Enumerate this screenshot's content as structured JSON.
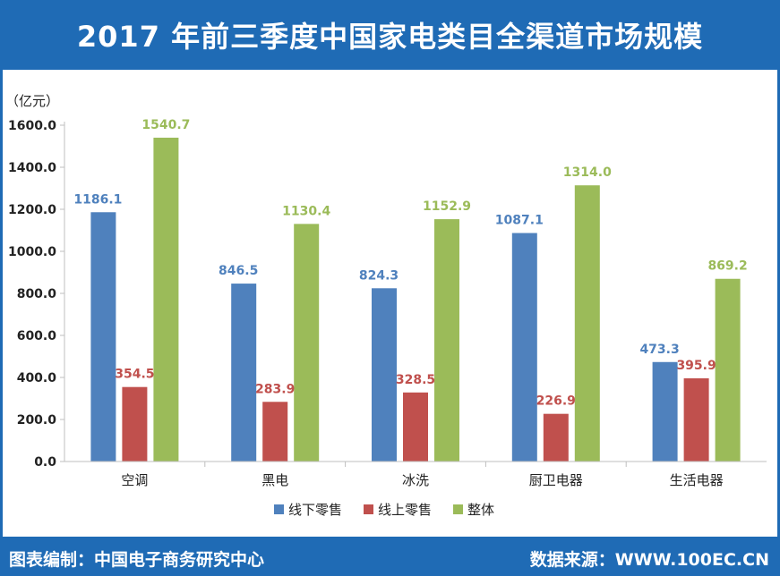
{
  "header": {
    "title": "2017 年前三季度中国家电类目全渠道市场规模"
  },
  "footer": {
    "source_left": "图表编制：中国电子商务研究中心",
    "source_right": "数据来源：WWW.100EC.CN"
  },
  "chart_data": {
    "type": "bar",
    "title": "2017 年前三季度中国家电类目全渠道市场规模",
    "ylabel": "（亿元）",
    "xlabel": "",
    "ylim": [
      0,
      1600
    ],
    "yticks": [
      "0.0",
      "200.0",
      "400.0",
      "600.0",
      "800.0",
      "1000.0",
      "1200.0",
      "1400.0",
      "1600.0"
    ],
    "categories": [
      "空调",
      "黑电",
      "冰洗",
      "厨卫电器",
      "生活电器"
    ],
    "series": [
      {
        "name": "线下零售",
        "color": "#4f81bd",
        "values": [
          1186.1,
          846.5,
          824.3,
          1087.1,
          473.3
        ],
        "labels": [
          "1186.1",
          "846.5",
          "824.3",
          "1087.1",
          "473.3"
        ]
      },
      {
        "name": "线上零售",
        "color": "#c0504d",
        "values": [
          354.5,
          283.9,
          328.5,
          226.9,
          395.9
        ],
        "labels": [
          "354.5",
          "283.9",
          "328.5",
          "226.9",
          "395.9"
        ]
      },
      {
        "name": "整体",
        "color": "#9bbb59",
        "values": [
          1540.7,
          1130.4,
          1152.9,
          1314.0,
          869.2
        ],
        "labels": [
          "1540.7",
          "1130.4",
          "1152.9",
          "1314.0",
          "869.2"
        ]
      }
    ],
    "label_colors": [
      "#4f81bd",
      "#c0504d",
      "#9bbb59"
    ],
    "grid": false,
    "legend": "bottom-center"
  }
}
